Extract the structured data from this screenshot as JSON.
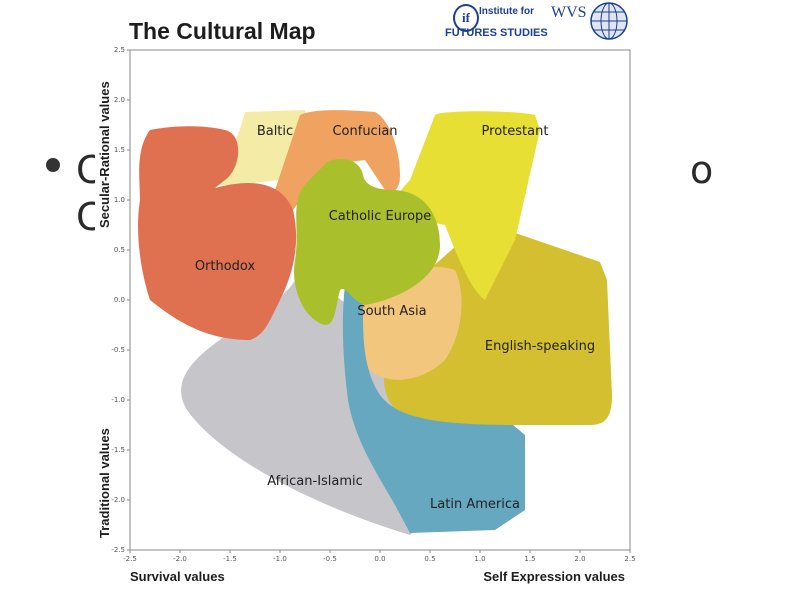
{
  "slide": {
    "bullet_fragments": [
      "C",
      "o",
      "C"
    ]
  },
  "figure": {
    "title": "The Cultural Map",
    "logos": {
      "ifs_mark": "if",
      "ifs_line1": "Institute for",
      "ifs_line2": "FUTURES STUDIES",
      "wvs": "WVS"
    }
  },
  "chart_data": {
    "type": "area",
    "xlabel_left": "Survival values",
    "xlabel_right": "Self Expression values",
    "ylabel_top": "Secular-Rational values",
    "ylabel_bottom": "Traditional values",
    "xlim": [
      -2.5,
      2.5
    ],
    "ylim": [
      -2.5,
      2.5
    ],
    "x_ticks": [
      "-2.5",
      "-2.0",
      "-1.5",
      "-1.0",
      "-0.5",
      "0.0",
      "0.5",
      "1.0",
      "1.5",
      "2.0",
      "2.5"
    ],
    "y_ticks": [
      "2.5",
      "2.0",
      "1.5",
      "1.0",
      "0.5",
      "0.0",
      "-0.5",
      "-1.0",
      "-1.5",
      "-2.0",
      "-2.5"
    ],
    "grid": false,
    "regions": [
      {
        "name": "Baltic",
        "color": "#f4eba6",
        "label_at": [
          -1.05,
          1.65
        ]
      },
      {
        "name": "Confucian",
        "color": "#f0a260",
        "label_at": [
          -0.15,
          1.65
        ]
      },
      {
        "name": "Protestant",
        "color": "#e7df33",
        "label_at": [
          1.35,
          1.65
        ]
      },
      {
        "name": "Orthodox",
        "color": "#df7050",
        "label_at": [
          -1.55,
          0.3
        ]
      },
      {
        "name": "Catholic Europe",
        "color": "#a9c02c",
        "label_at": [
          0.0,
          0.8
        ]
      },
      {
        "name": "South Asia",
        "color": "#f2c67c",
        "label_at": [
          0.12,
          -0.15
        ]
      },
      {
        "name": "English-speaking",
        "color": "#d4bf30",
        "label_at": [
          1.6,
          -0.5
        ]
      },
      {
        "name": "African-Islamic",
        "color": "#c6c5ca",
        "label_at": [
          -0.65,
          -1.85
        ]
      },
      {
        "name": "Latin America",
        "color": "#66a8c0",
        "label_at": [
          0.95,
          -2.08
        ]
      }
    ]
  }
}
